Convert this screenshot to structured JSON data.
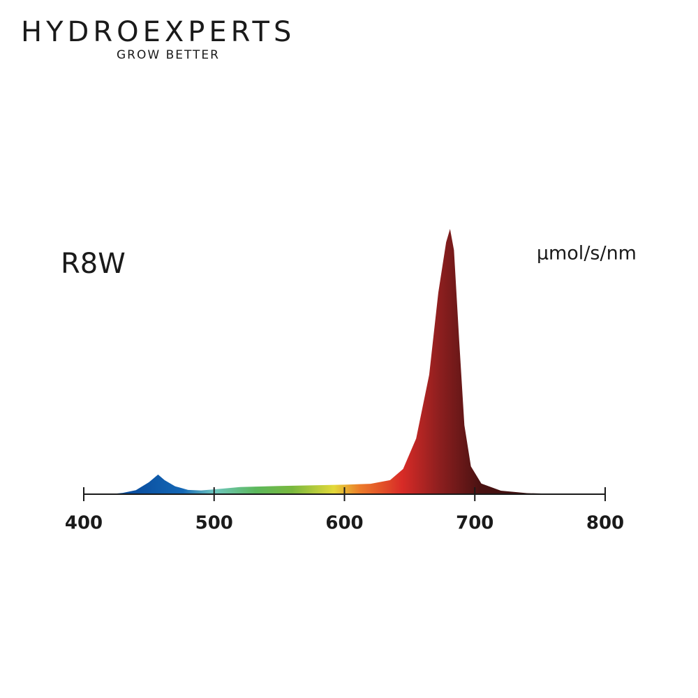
{
  "logo": {
    "brand": "HYDROEXPERTS",
    "tagline": "GROW BETTER"
  },
  "chart_data": {
    "type": "area",
    "title": "R8W",
    "y_label": "µmol/s/nm",
    "x": [
      420,
      430,
      440,
      450,
      457,
      462,
      470,
      480,
      490,
      500,
      520,
      550,
      580,
      600,
      620,
      635,
      645,
      655,
      665,
      672,
      678,
      681,
      684,
      688,
      692,
      697,
      705,
      720,
      740,
      770
    ],
    "values": [
      0,
      0.005,
      0.015,
      0.045,
      0.074,
      0.053,
      0.03,
      0.016,
      0.014,
      0.018,
      0.027,
      0.031,
      0.034,
      0.036,
      0.039,
      0.053,
      0.095,
      0.21,
      0.45,
      0.76,
      0.95,
      1.0,
      0.92,
      0.58,
      0.26,
      0.105,
      0.04,
      0.013,
      0.004,
      0
    ],
    "xlim": [
      400,
      800
    ],
    "xticks": [
      400,
      500,
      600,
      700,
      800
    ],
    "ylim": [
      0,
      1
    ]
  }
}
